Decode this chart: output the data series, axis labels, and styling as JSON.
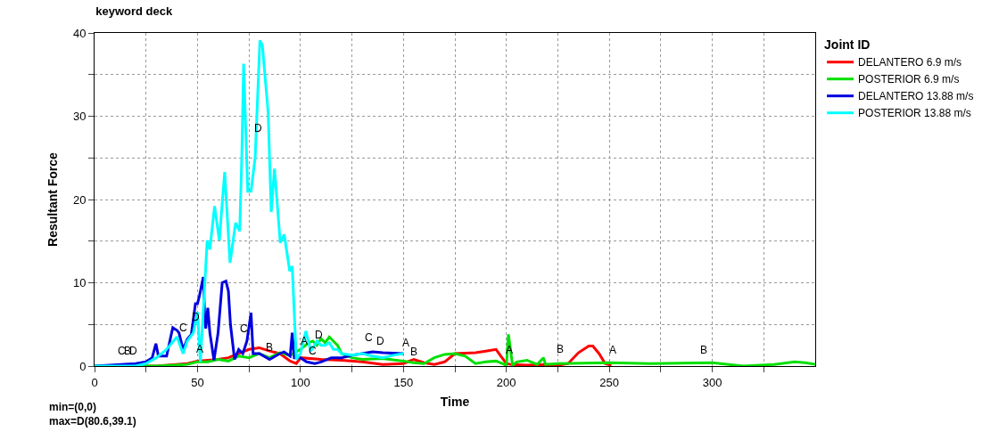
{
  "chart_data": {
    "type": "line",
    "title": "keyword deck",
    "xlabel": "Time",
    "ylabel": "Resultant Force",
    "legend_title": "Joint ID",
    "series": [
      {
        "name": "DELANTERO 6.9 m/s",
        "color": "#ff0000",
        "x": [
          0,
          30,
          45,
          50,
          60,
          65,
          70,
          75,
          80,
          85,
          90,
          95,
          98,
          100,
          110,
          120,
          130,
          140,
          150,
          155,
          160,
          165,
          170,
          175,
          185,
          190,
          195,
          197,
          200,
          202,
          210,
          220,
          225,
          230,
          235,
          240,
          242,
          245,
          248,
          251
        ],
        "values": [
          0,
          0,
          0.3,
          0.6,
          0.8,
          1.0,
          1.5,
          2.0,
          2.2,
          1.8,
          1.5,
          0.6,
          0.3,
          1.0,
          0.8,
          0.7,
          0.5,
          0.2,
          0.3,
          0.8,
          0.4,
          0.2,
          0.5,
          1.5,
          1.6,
          1.8,
          2.0,
          1.3,
          0.3,
          0.2,
          0.1,
          0.2,
          0.1,
          0.3,
          1.6,
          2.4,
          2.4,
          1.5,
          0.3,
          0.1
        ]
      },
      {
        "name": "POSTERIOR 6.9 m/s",
        "color": "#00e000",
        "x": [
          0,
          30,
          45,
          50,
          55,
          60,
          65,
          70,
          75,
          80,
          85,
          90,
          95,
          100,
          104,
          106,
          108,
          110,
          112,
          114,
          116,
          118,
          120,
          125,
          130,
          140,
          150,
          155,
          160,
          165,
          170,
          175,
          180,
          185,
          190,
          195,
          199,
          200,
          201,
          202,
          203,
          205,
          210,
          215,
          218,
          219,
          225,
          250,
          270,
          300,
          315,
          330,
          340,
          345,
          350
        ],
        "values": [
          0,
          0,
          0.2,
          0.5,
          0.5,
          0.8,
          0.6,
          1.2,
          1.0,
          1.5,
          1.0,
          1.6,
          1.3,
          2.0,
          2.8,
          3.0,
          2.5,
          3.3,
          2.8,
          3.5,
          3.0,
          2.5,
          1.5,
          1.0,
          0.8,
          0.9,
          0.6,
          0.4,
          0.3,
          1.0,
          1.4,
          1.5,
          1.2,
          0.3,
          0.5,
          0.6,
          0.2,
          0,
          3.8,
          2.0,
          0.1,
          0.5,
          0.7,
          0.2,
          1.0,
          0.2,
          0.3,
          0.4,
          0.3,
          0.4,
          0,
          0.2,
          0.5,
          0.4,
          0.2
        ]
      },
      {
        "name": "DELANTERO 13.88 m/s",
        "color": "#0000e0",
        "x": [
          0,
          20,
          25,
          28,
          29.8,
          31,
          35,
          37,
          38,
          40,
          41,
          43,
          45,
          47,
          49,
          50,
          51,
          52.8,
          53.5,
          54,
          55,
          56,
          58,
          60,
          62,
          63.8,
          65,
          66,
          68,
          70,
          72,
          74,
          76,
          77,
          80,
          85,
          90,
          92,
          95,
          96,
          97,
          100,
          103,
          107,
          110,
          115,
          120,
          125,
          130,
          135,
          140,
          150
        ],
        "values": [
          0,
          0.3,
          0.5,
          1,
          2.7,
          1.2,
          1.2,
          3.5,
          4.6,
          4.3,
          4,
          2,
          3.2,
          3.8,
          7.5,
          7.5,
          8.5,
          10.7,
          6,
          4.5,
          7,
          4,
          0.7,
          4,
          10,
          10.2,
          9,
          5,
          0.8,
          2,
          1.5,
          3,
          6.4,
          1.5,
          1.5,
          0.8,
          1.5,
          1.7,
          1.2,
          4,
          1,
          1.0,
          0.5,
          0.3,
          0.5,
          1.0,
          1.0,
          1.3,
          1.5,
          1.7,
          1.6,
          1.5
        ]
      },
      {
        "name": "POSTERIOR 13.88 m/s",
        "color": "#00ffff",
        "x": [
          0,
          20,
          25,
          30,
          35,
          40,
          43,
          45,
          48,
          50,
          51.4,
          52.8,
          54.7,
          56,
          58.3,
          60.6,
          63.2,
          65.8,
          68.5,
          70.5,
          71.5,
          72.4,
          74.4,
          76,
          78,
          80.3,
          81.5,
          84.3,
          85.8,
          87.4,
          90.2,
          92.1,
          94.8,
          96,
          98,
          100,
          102.6,
          105,
          108,
          110,
          112,
          114,
          116,
          118,
          120,
          125,
          130,
          135,
          140,
          145,
          150
        ],
        "values": [
          0,
          0,
          0.3,
          1,
          2,
          3.5,
          1.5,
          3,
          4,
          6.5,
          0.5,
          6.6,
          15.1,
          14,
          19.2,
          15.1,
          23.3,
          12.4,
          17.2,
          16.2,
          25,
          36.3,
          21,
          21,
          25,
          39.1,
          38.5,
          30.5,
          18.5,
          23.7,
          14.8,
          15.8,
          11.4,
          12,
          0.8,
          1.5,
          4.2,
          1.8,
          3,
          2.5,
          2.5,
          2.8,
          2,
          2,
          1.5,
          1.3,
          1.5,
          1.2,
          1.0,
          1.3,
          1.5
        ]
      }
    ],
    "xlim": [
      0,
      350
    ],
    "xticks": [
      0,
      {
        "value": 25,
        "label": null
      },
      50,
      {
        "value": 75,
        "label": null
      },
      100,
      {
        "value": 125,
        "label": null
      },
      150,
      {
        "value": 175,
        "label": null
      },
      200,
      {
        "value": 225,
        "label": null
      },
      250,
      {
        "value": 275,
        "label": null
      },
      300,
      {
        "value": 325,
        "label": null
      }
    ],
    "ylim": [
      0,
      40
    ],
    "yticks": [
      0,
      {
        "value": 5,
        "label": null
      },
      10,
      {
        "value": 15,
        "label": null
      },
      20,
      {
        "value": 25,
        "label": null
      },
      30,
      {
        "value": 35,
        "label": null
      },
      40
    ],
    "grid": true,
    "legend": "top right",
    "marker": "none",
    "line_style": "solid",
    "annotations": [
      {
        "text": "C",
        "x": 13.4,
        "y": 0.5
      },
      {
        "text": "B",
        "x": 16,
        "y": 0.5
      },
      {
        "text": "D",
        "x": 19,
        "y": 0.5
      },
      {
        "text": "C",
        "x": 43,
        "y": 3.3
      },
      {
        "text": "D",
        "x": 49,
        "y": 4.6
      },
      {
        "text": "A",
        "x": 51,
        "y": 0.8
      },
      {
        "text": "C",
        "x": 72.4,
        "y": 3.2
      },
      {
        "text": "D",
        "x": 79.5,
        "y": 27.3
      },
      {
        "text": "B",
        "x": 85,
        "y": 1.0
      },
      {
        "text": "A",
        "x": 101.6,
        "y": 1.7
      },
      {
        "text": "C",
        "x": 106,
        "y": 0.5
      },
      {
        "text": "D",
        "x": 109,
        "y": 2.5
      },
      {
        "text": "C",
        "x": 133,
        "y": 2.1
      },
      {
        "text": "D",
        "x": 139,
        "y": 1.7
      },
      {
        "text": "A",
        "x": 151,
        "y": 1.5
      },
      {
        "text": "B",
        "x": 155,
        "y": 0.4
      },
      {
        "text": "A",
        "x": 201.6,
        "y": 0.6
      },
      {
        "text": "B",
        "x": 226,
        "y": 0.8
      },
      {
        "text": "A",
        "x": 251.6,
        "y": 0.6
      },
      {
        "text": "B",
        "x": 295.7,
        "y": 0.6
      },
      "min=(0,0)",
      "max=D(80.6,39.1)"
    ]
  }
}
